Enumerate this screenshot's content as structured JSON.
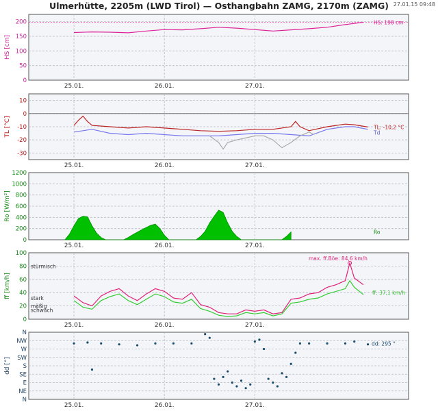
{
  "title": "Ulmerhütte, 2205m (LWD Tirol) — Osthangbahn ZAMG, 2170m (ZAMG)",
  "timestamp": "27.01.15 09:48",
  "chart_data": [
    {
      "type": "line",
      "ylabel": "HS [cm]",
      "ylim": [
        0,
        225
      ],
      "yticks": [
        0,
        50,
        100,
        150,
        200
      ],
      "x_ticks": [
        "25.01.",
        "26.01.",
        "27.01."
      ],
      "label_color": "#cc2299",
      "series": [
        {
          "name": "",
          "color": "#dd2299",
          "points": [
            [
              0,
              163
            ],
            [
              0.2,
              165
            ],
            [
              0.4,
              164
            ],
            [
              0.6,
              162
            ],
            [
              0.8,
              168
            ],
            [
              1.0,
              173
            ],
            [
              1.2,
              172
            ],
            [
              1.4,
              176
            ],
            [
              1.6,
              181
            ],
            [
              1.8,
              178
            ],
            [
              2.0,
              173
            ],
            [
              2.2,
              168
            ],
            [
              2.4,
              172
            ],
            [
              2.6,
              176
            ],
            [
              2.8,
              181
            ],
            [
              3.0,
              190
            ],
            [
              3.2,
              198
            ]
          ]
        }
      ],
      "annotations": [
        {
          "text": "HS: 198 cm",
          "color": "#dd2299"
        }
      ]
    },
    {
      "type": "line",
      "ylabel": "TL [°C]",
      "ylim": [
        -35,
        15
      ],
      "yticks": [
        -30,
        -20,
        -10,
        0,
        10
      ],
      "x_ticks": [
        "25.01.",
        "26.01.",
        "27.01."
      ],
      "label_color": "#bb1111",
      "series": [
        {
          "name": "",
          "color": "#bb2222",
          "points": [
            [
              0,
              -9
            ],
            [
              0.05,
              -5
            ],
            [
              0.1,
              -2
            ],
            [
              0.15,
              -6
            ],
            [
              0.2,
              -9
            ],
            [
              0.4,
              -10
            ],
            [
              0.6,
              -11
            ],
            [
              0.8,
              -10
            ],
            [
              1.0,
              -11
            ],
            [
              1.2,
              -12
            ],
            [
              1.4,
              -13
            ],
            [
              1.6,
              -13.5
            ],
            [
              1.8,
              -13
            ],
            [
              2.0,
              -12
            ],
            [
              2.2,
              -12
            ],
            [
              2.4,
              -10
            ],
            [
              2.45,
              -6
            ],
            [
              2.5,
              -10
            ],
            [
              2.6,
              -13
            ],
            [
              2.8,
              -10
            ],
            [
              3.0,
              -8
            ],
            [
              3.1,
              -8.5
            ],
            [
              3.25,
              -10.2
            ]
          ]
        },
        {
          "name": "",
          "color": "#7777ee",
          "points": [
            [
              0,
              -14
            ],
            [
              0.1,
              -13
            ],
            [
              0.2,
              -12
            ],
            [
              0.4,
              -15
            ],
            [
              0.6,
              -16
            ],
            [
              0.8,
              -15
            ],
            [
              1.0,
              -16
            ],
            [
              1.2,
              -17
            ],
            [
              1.4,
              -17
            ],
            [
              1.6,
              -17
            ],
            [
              1.8,
              -16
            ],
            [
              2.0,
              -15
            ],
            [
              2.2,
              -15
            ],
            [
              2.4,
              -16
            ],
            [
              2.6,
              -17
            ],
            [
              2.8,
              -12
            ],
            [
              3.0,
              -10
            ],
            [
              3.1,
              -10
            ],
            [
              3.25,
              -12
            ]
          ]
        },
        {
          "name": "",
          "color": "#aaaaaa",
          "points": [
            [
              1.5,
              -17
            ],
            [
              1.6,
              -22
            ],
            [
              1.65,
              -27
            ],
            [
              1.7,
              -22
            ],
            [
              1.8,
              -20
            ],
            [
              2.0,
              -17
            ],
            [
              2.1,
              -17
            ],
            [
              2.2,
              -20
            ],
            [
              2.3,
              -26
            ],
            [
              2.4,
              -22
            ],
            [
              2.5,
              -17
            ],
            [
              2.6,
              -14
            ],
            [
              2.65,
              -16
            ]
          ]
        }
      ],
      "annotations": [
        {
          "text": "TL: -10,2 °C",
          "color": "#bb2222"
        },
        {
          "text": "Td",
          "color": "#5555cc"
        }
      ]
    },
    {
      "type": "area",
      "ylabel": "Ro [W/m²]",
      "ylim": [
        0,
        1200
      ],
      "yticks": [
        0,
        200,
        400,
        600,
        800,
        1000,
        1200
      ],
      "x_ticks": [
        "25.01.",
        "26.01.",
        "27.01."
      ],
      "label_color": "#118811",
      "series": [
        {
          "name": "",
          "color": "#00c000",
          "points": [
            [
              -0.1,
              0
            ],
            [
              -0.05,
              100
            ],
            [
              0,
              250
            ],
            [
              0.05,
              380
            ],
            [
              0.1,
              420
            ],
            [
              0.15,
              410
            ],
            [
              0.2,
              250
            ],
            [
              0.25,
              120
            ],
            [
              0.3,
              40
            ],
            [
              0.35,
              0
            ],
            [
              0.55,
              0
            ],
            [
              0.6,
              40
            ],
            [
              0.65,
              90
            ],
            [
              0.75,
              180
            ],
            [
              0.85,
              260
            ],
            [
              0.9,
              280
            ],
            [
              0.95,
              200
            ],
            [
              1.0,
              80
            ],
            [
              1.05,
              0
            ],
            [
              1.35,
              0
            ],
            [
              1.4,
              60
            ],
            [
              1.45,
              150
            ],
            [
              1.5,
              300
            ],
            [
              1.55,
              420
            ],
            [
              1.6,
              530
            ],
            [
              1.65,
              490
            ],
            [
              1.7,
              300
            ],
            [
              1.75,
              150
            ],
            [
              1.8,
              60
            ],
            [
              1.85,
              0
            ],
            [
              2.3,
              0
            ],
            [
              2.35,
              60
            ],
            [
              2.4,
              140
            ]
          ]
        }
      ],
      "annotations": [
        {
          "text": "Ro",
          "color": "#118811"
        }
      ]
    },
    {
      "type": "line",
      "ylabel": "ff [km/h]",
      "ylim": [
        0,
        100
      ],
      "yticks": [
        0,
        20,
        40,
        60,
        80,
        100
      ],
      "x_ticks": [
        "25.01.",
        "26.01.",
        "27.01."
      ],
      "label_color": "#118811",
      "category_labels": [
        "stürmisch",
        "stark",
        "mäßig",
        "schwach"
      ],
      "series": [
        {
          "name": "",
          "color": "#dd2277",
          "points": [
            [
              0,
              35
            ],
            [
              0.1,
              25
            ],
            [
              0.2,
              20
            ],
            [
              0.3,
              35
            ],
            [
              0.4,
              42
            ],
            [
              0.5,
              46
            ],
            [
              0.6,
              35
            ],
            [
              0.7,
              28
            ],
            [
              0.8,
              38
            ],
            [
              0.9,
              46
            ],
            [
              1.0,
              42
            ],
            [
              1.1,
              32
            ],
            [
              1.2,
              30
            ],
            [
              1.3,
              40
            ],
            [
              1.4,
              22
            ],
            [
              1.5,
              18
            ],
            [
              1.6,
              10
            ],
            [
              1.7,
              8
            ],
            [
              1.8,
              8
            ],
            [
              1.9,
              14
            ],
            [
              2.0,
              12
            ],
            [
              2.1,
              14
            ],
            [
              2.2,
              8
            ],
            [
              2.3,
              10
            ],
            [
              2.4,
              30
            ],
            [
              2.5,
              32
            ],
            [
              2.6,
              38
            ],
            [
              2.7,
              40
            ],
            [
              2.8,
              48
            ],
            [
              2.9,
              52
            ],
            [
              3.0,
              58
            ],
            [
              3.05,
              84.6
            ],
            [
              3.1,
              62
            ],
            [
              3.2,
              52
            ]
          ]
        },
        {
          "name": "",
          "color": "#33cc33",
          "points": [
            [
              0,
              28
            ],
            [
              0.1,
              18
            ],
            [
              0.2,
              15
            ],
            [
              0.3,
              28
            ],
            [
              0.4,
              34
            ],
            [
              0.5,
              38
            ],
            [
              0.6,
              28
            ],
            [
              0.7,
              22
            ],
            [
              0.8,
              30
            ],
            [
              0.9,
              38
            ],
            [
              1.0,
              34
            ],
            [
              1.1,
              26
            ],
            [
              1.2,
              24
            ],
            [
              1.3,
              30
            ],
            [
              1.4,
              16
            ],
            [
              1.5,
              12
            ],
            [
              1.6,
              6
            ],
            [
              1.7,
              4
            ],
            [
              1.8,
              5
            ],
            [
              1.9,
              10
            ],
            [
              2.0,
              8
            ],
            [
              2.1,
              10
            ],
            [
              2.2,
              5
            ],
            [
              2.3,
              8
            ],
            [
              2.4,
              24
            ],
            [
              2.5,
              26
            ],
            [
              2.6,
              30
            ],
            [
              2.7,
              32
            ],
            [
              2.8,
              38
            ],
            [
              2.9,
              42
            ],
            [
              3.0,
              46
            ],
            [
              3.05,
              58
            ],
            [
              3.1,
              48
            ],
            [
              3.2,
              37.1
            ]
          ]
        }
      ],
      "annotations": [
        {
          "text": "max. ff.Böe: 84,6 km/h",
          "color": "#dd2277"
        },
        {
          "text": "ff: 37,1 km/h",
          "color": "#33bb33"
        }
      ]
    },
    {
      "type": "scatter",
      "ylabel": "dd [°]",
      "ylim": [
        0,
        360
      ],
      "yticks_labels": [
        "N",
        "NE",
        "E",
        "SE",
        "S",
        "SW",
        "W",
        "NW",
        "N"
      ],
      "x_ticks": [
        "25.01.",
        "26.01.",
        "27.01."
      ],
      "label_color": "#224466",
      "series": [
        {
          "name": "",
          "color": "#1a4a6a",
          "points": [
            [
              0,
              300
            ],
            [
              0.15,
              305
            ],
            [
              0.2,
              160
            ],
            [
              0.3,
              300
            ],
            [
              0.5,
              295
            ],
            [
              0.7,
              290
            ],
            [
              0.9,
              300
            ],
            [
              1.1,
              300
            ],
            [
              1.3,
              300
            ],
            [
              1.45,
              350
            ],
            [
              1.5,
              330
            ],
            [
              1.55,
              110
            ],
            [
              1.6,
              80
            ],
            [
              1.65,
              120
            ],
            [
              1.7,
              150
            ],
            [
              1.75,
              90
            ],
            [
              1.8,
              70
            ],
            [
              1.85,
              100
            ],
            [
              1.9,
              60
            ],
            [
              1.95,
              80
            ],
            [
              2.0,
              310
            ],
            [
              2.05,
              320
            ],
            [
              2.1,
              270
            ],
            [
              2.15,
              110
            ],
            [
              2.2,
              90
            ],
            [
              2.25,
              70
            ],
            [
              2.3,
              140
            ],
            [
              2.35,
              120
            ],
            [
              2.4,
              190
            ],
            [
              2.45,
              250
            ],
            [
              2.5,
              300
            ],
            [
              2.6,
              300
            ],
            [
              2.8,
              300
            ],
            [
              3.0,
              300
            ],
            [
              3.1,
              310
            ],
            [
              3.25,
              295
            ]
          ]
        }
      ],
      "annotations": [
        {
          "text": "dd: 295 °",
          "color": "#1a4a6a"
        }
      ]
    }
  ]
}
